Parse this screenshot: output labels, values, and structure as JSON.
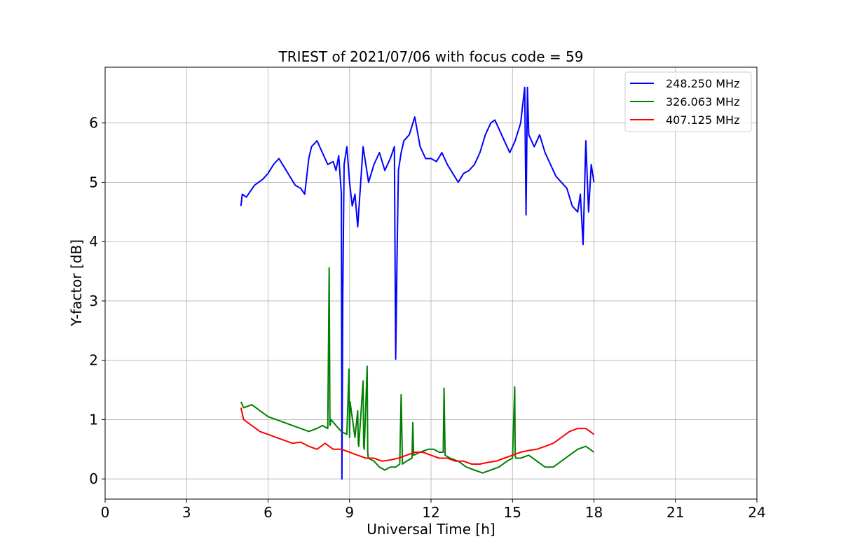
{
  "chart_data": {
    "type": "line",
    "title": "TRIEST of 2021/07/06 with focus code = 59",
    "xlabel": "Universal Time [h]",
    "ylabel": "Y-factor [dB]",
    "xlim": [
      0,
      24
    ],
    "ylim": [
      -0.34,
      6.94
    ],
    "xticks": [
      0,
      3,
      6,
      9,
      12,
      15,
      18,
      21,
      24
    ],
    "yticks": [
      0,
      1,
      2,
      3,
      4,
      5,
      6
    ],
    "grid": true,
    "legend_position": "top-right",
    "series": [
      {
        "name": "248.250 MHz",
        "color": "#0000ff",
        "x": [
          5.0,
          5.05,
          5.2,
          5.5,
          5.8,
          6.0,
          6.2,
          6.4,
          6.6,
          6.8,
          7.0,
          7.2,
          7.35,
          7.5,
          7.6,
          7.8,
          8.0,
          8.2,
          8.4,
          8.5,
          8.6,
          8.7,
          8.72,
          8.75,
          8.8,
          8.9,
          9.0,
          9.1,
          9.2,
          9.3,
          9.5,
          9.7,
          9.9,
          10.1,
          10.3,
          10.5,
          10.65,
          10.7,
          10.75,
          10.8,
          10.9,
          11.0,
          11.2,
          11.4,
          11.6,
          11.8,
          12.0,
          12.2,
          12.4,
          12.6,
          12.8,
          13.0,
          13.2,
          13.4,
          13.6,
          13.8,
          14.0,
          14.2,
          14.35,
          14.5,
          14.7,
          14.9,
          15.1,
          15.3,
          15.45,
          15.5,
          15.55,
          15.6,
          15.7,
          15.8,
          16.0,
          16.2,
          16.4,
          16.6,
          16.8,
          17.0,
          17.2,
          17.4,
          17.5,
          17.6,
          17.7,
          17.8,
          17.9,
          18.0
        ],
        "y": [
          4.6,
          4.8,
          4.75,
          4.95,
          5.05,
          5.15,
          5.3,
          5.4,
          5.25,
          5.1,
          4.95,
          4.9,
          4.8,
          5.4,
          5.6,
          5.7,
          5.5,
          5.3,
          5.35,
          5.2,
          5.45,
          4.8,
          0.0,
          3.1,
          5.3,
          5.6,
          5.0,
          4.6,
          4.8,
          4.25,
          5.6,
          5.0,
          5.3,
          5.5,
          5.2,
          5.4,
          5.6,
          2.02,
          3.8,
          5.2,
          5.5,
          5.7,
          5.8,
          6.1,
          5.6,
          5.4,
          5.4,
          5.35,
          5.5,
          5.3,
          5.15,
          5.0,
          5.15,
          5.2,
          5.3,
          5.5,
          5.8,
          6.0,
          6.05,
          5.9,
          5.7,
          5.5,
          5.7,
          6.0,
          6.6,
          4.45,
          6.6,
          5.8,
          5.7,
          5.6,
          5.8,
          5.5,
          5.3,
          5.1,
          5.0,
          4.9,
          4.6,
          4.5,
          4.8,
          3.95,
          5.7,
          4.5,
          5.3,
          5.0
        ]
      },
      {
        "name": "326.063 MHz",
        "color": "#008000",
        "x": [
          5.0,
          5.1,
          5.4,
          5.7,
          6.0,
          6.3,
          6.6,
          6.9,
          7.2,
          7.5,
          7.8,
          8.0,
          8.2,
          8.25,
          8.28,
          8.32,
          8.5,
          8.7,
          8.9,
          8.98,
          9.0,
          9.02,
          9.2,
          9.3,
          9.32,
          9.34,
          9.5,
          9.52,
          9.54,
          9.65,
          9.67,
          9.69,
          9.9,
          10.1,
          10.3,
          10.5,
          10.7,
          10.85,
          10.9,
          10.95,
          11.1,
          11.3,
          11.33,
          11.36,
          11.6,
          11.9,
          12.1,
          12.3,
          12.45,
          12.48,
          12.52,
          12.7,
          13.0,
          13.3,
          13.6,
          13.9,
          14.2,
          14.5,
          14.8,
          15.0,
          15.08,
          15.1,
          15.12,
          15.3,
          15.6,
          15.9,
          16.2,
          16.5,
          16.8,
          17.1,
          17.4,
          17.7,
          18.0
        ],
        "y": [
          1.3,
          1.2,
          1.25,
          1.15,
          1.05,
          1.0,
          0.95,
          0.9,
          0.85,
          0.8,
          0.85,
          0.9,
          0.85,
          3.56,
          0.9,
          1.0,
          0.9,
          0.8,
          0.75,
          1.85,
          0.7,
          1.3,
          0.7,
          1.15,
          0.6,
          0.55,
          1.65,
          0.55,
          0.5,
          1.9,
          0.45,
          0.35,
          0.3,
          0.2,
          0.15,
          0.2,
          0.2,
          0.25,
          1.42,
          0.25,
          0.3,
          0.35,
          0.95,
          0.4,
          0.45,
          0.5,
          0.5,
          0.45,
          0.45,
          1.53,
          0.4,
          0.35,
          0.3,
          0.2,
          0.15,
          0.1,
          0.15,
          0.2,
          0.3,
          0.35,
          1.55,
          0.4,
          0.35,
          0.35,
          0.4,
          0.3,
          0.2,
          0.2,
          0.3,
          0.4,
          0.5,
          0.55,
          0.45
        ]
      },
      {
        "name": "407.125 MHz",
        "color": "#ff0000",
        "x": [
          5.0,
          5.1,
          5.4,
          5.7,
          6.0,
          6.3,
          6.6,
          6.9,
          7.2,
          7.5,
          7.8,
          8.1,
          8.4,
          8.7,
          9.0,
          9.3,
          9.6,
          9.9,
          10.2,
          10.5,
          10.8,
          11.1,
          11.4,
          11.7,
          12.0,
          12.3,
          12.6,
          12.9,
          13.2,
          13.5,
          13.8,
          14.1,
          14.4,
          14.7,
          15.0,
          15.3,
          15.6,
          15.9,
          16.2,
          16.5,
          16.8,
          17.1,
          17.4,
          17.7,
          18.0
        ],
        "y": [
          1.2,
          1.0,
          0.9,
          0.8,
          0.75,
          0.7,
          0.65,
          0.6,
          0.62,
          0.55,
          0.5,
          0.6,
          0.5,
          0.5,
          0.45,
          0.4,
          0.35,
          0.35,
          0.3,
          0.32,
          0.35,
          0.4,
          0.45,
          0.45,
          0.4,
          0.35,
          0.35,
          0.3,
          0.3,
          0.25,
          0.25,
          0.28,
          0.3,
          0.35,
          0.4,
          0.45,
          0.48,
          0.5,
          0.55,
          0.6,
          0.7,
          0.8,
          0.85,
          0.85,
          0.75
        ]
      }
    ]
  }
}
